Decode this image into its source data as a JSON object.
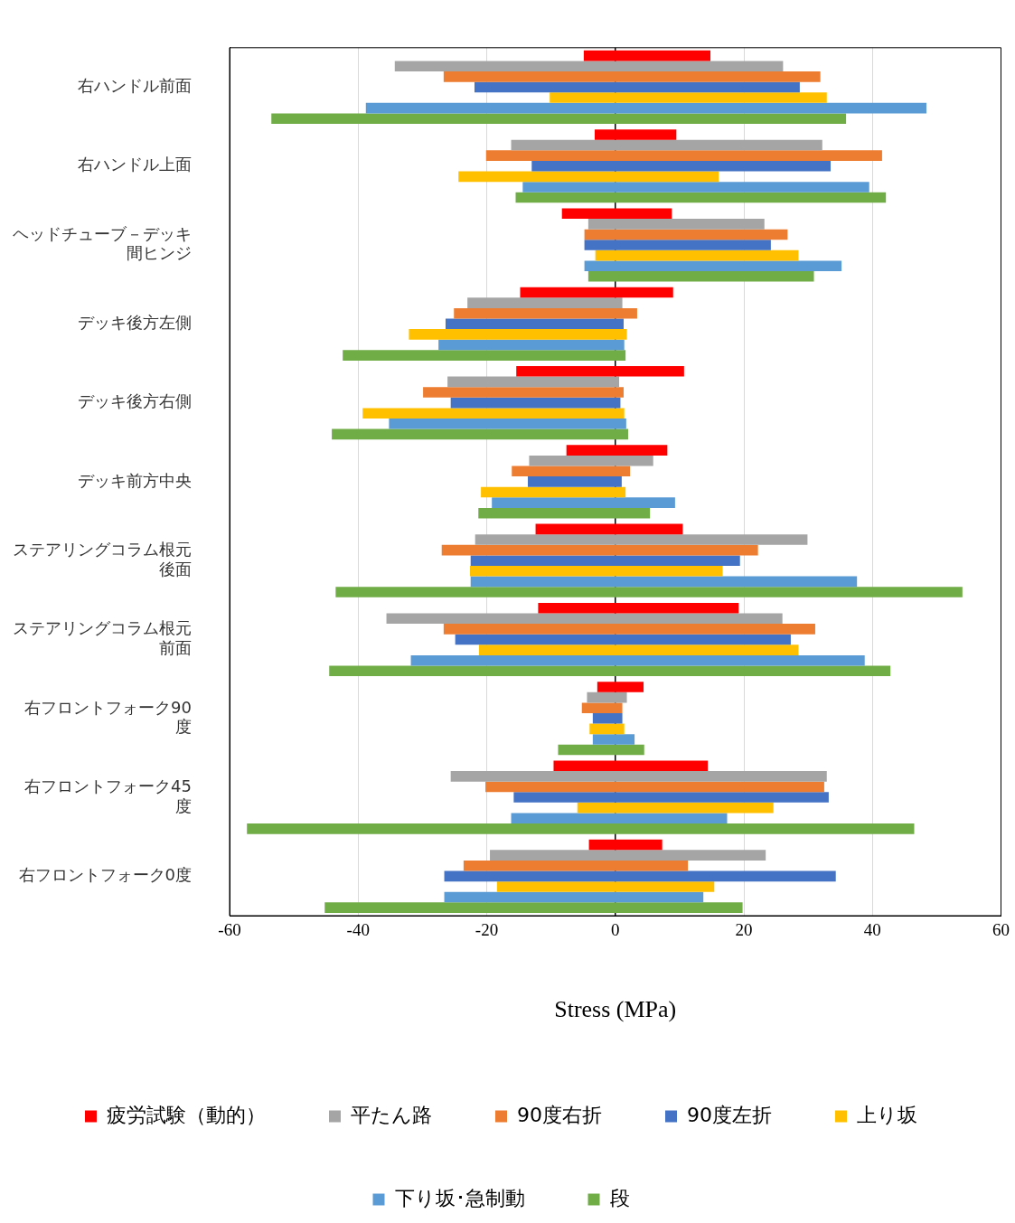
{
  "chart_data": {
    "type": "bar",
    "orientation": "horizontal",
    "xlabel": "Stress (MPa)",
    "categories": [
      "右ハンドル前面",
      "右ハンドル上面",
      "ヘッドチューブ－デッキ間ヒンジ",
      "デッキ後方左側",
      "デッキ後方右側",
      "デッキ前方中央",
      "ステアリングコラム根元後面",
      "ステアリングコラム根元前面",
      "右フロントフォーク90度",
      "右フロントフォーク45度",
      "右フロントフォーク0度"
    ],
    "series": [
      {
        "name": "疲労試験（動的）",
        "color": "#ff0000",
        "base": [
          -4.9,
          -3.2,
          -8.3,
          -14.8,
          -15.4,
          -7.6,
          -12.4,
          -12.0,
          -2.8,
          -9.6,
          -4.1
        ],
        "values": [
          19.7,
          12.7,
          17.1,
          23.8,
          26.1,
          15.7,
          22.9,
          31.2,
          7.2,
          24.0,
          11.4
        ]
      },
      {
        "name": "平たん路",
        "color": "#a5a5a5",
        "base": [
          -34.3,
          -16.2,
          -4.2,
          -23.0,
          -26.1,
          -13.4,
          -21.8,
          -35.6,
          -4.4,
          -25.6,
          -19.5
        ],
        "values": [
          60.4,
          48.4,
          27.4,
          24.1,
          26.7,
          19.3,
          51.7,
          61.6,
          6.2,
          58.5,
          42.9
        ]
      },
      {
        "name": "90度右折",
        "color": "#ed7d31",
        "base": [
          -26.7,
          -20.1,
          -4.8,
          -25.1,
          -29.9,
          -16.1,
          -27.0,
          -26.7,
          -5.2,
          -20.2,
          -23.6
        ],
        "values": [
          58.6,
          61.6,
          31.6,
          28.5,
          31.2,
          18.4,
          49.2,
          57.8,
          6.3,
          52.7,
          34.9
        ]
      },
      {
        "name": "90度左折",
        "color": "#4472c4",
        "base": [
          -21.9,
          -13.0,
          -4.8,
          -26.4,
          -25.6,
          -13.6,
          -22.5,
          -24.9,
          -3.5,
          -15.8,
          -26.6
        ],
        "values": [
          50.6,
          46.5,
          29.0,
          27.7,
          26.4,
          14.6,
          41.9,
          52.2,
          4.6,
          49.0,
          60.9
        ]
      },
      {
        "name": "上り坂",
        "color": "#ffc000",
        "base": [
          -10.2,
          -24.4,
          -3.1,
          -32.1,
          -39.3,
          -20.9,
          -22.6,
          -21.2,
          -4.0,
          -5.9,
          -18.4
        ],
        "values": [
          43.1,
          40.5,
          31.6,
          33.9,
          40.7,
          22.5,
          39.3,
          49.7,
          5.4,
          30.5,
          33.8
        ]
      },
      {
        "name": "下り坂･急制動",
        "color": "#5b9bd5",
        "base": [
          -38.8,
          -14.4,
          -4.8,
          -27.5,
          -35.2,
          -19.2,
          -22.5,
          -31.8,
          -3.5,
          -16.2,
          -26.6
        ],
        "values": [
          87.2,
          53.9,
          40.0,
          28.9,
          36.9,
          28.5,
          60.1,
          70.6,
          6.5,
          33.6,
          40.3
        ]
      },
      {
        "name": "段",
        "color": "#70ad47",
        "base": [
          -53.5,
          -15.5,
          -4.2,
          -42.4,
          -44.1,
          -21.3,
          -43.5,
          -44.5,
          -8.9,
          -57.3,
          -45.2
        ],
        "values": [
          89.4,
          57.6,
          35.1,
          44.0,
          46.1,
          26.7,
          97.5,
          87.3,
          13.4,
          103.8,
          65.0
        ]
      }
    ],
    "xlim": [
      -60,
      60
    ],
    "xticks": [
      -60,
      -40,
      -20,
      0,
      20,
      40,
      60
    ],
    "grid": "x",
    "legend": "bottom"
  }
}
